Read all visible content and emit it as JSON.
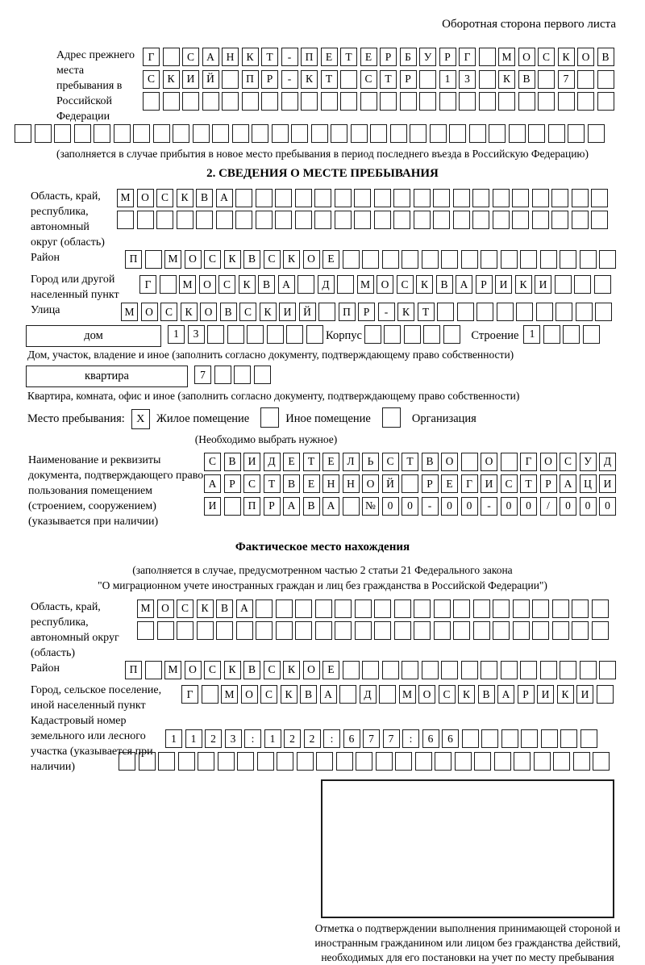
{
  "page": {
    "header_note": "Оборотная сторона первого листа"
  },
  "prev_address": {
    "label": "Адрес прежнего места пребывания в Российской Федерации",
    "rows": [
      "Г САНКТ-ПЕТЕРБУРГ МОСКОВ",
      "СКИЙ ПР-КТ СТР 13 КВ 7  ",
      "                        "
    ],
    "overflow_row": "                              ",
    "note": "(заполняется в случае прибытия в новое место пребывания в период последнего въезда в Российскую Федерацию)"
  },
  "section2": {
    "title": "2. СВЕДЕНИЯ О МЕСТЕ ПРЕБЫВАНИЯ",
    "region": {
      "label": "Область, край, республика, автономный округ (область)",
      "rows": [
        "МОСКВА                   ",
        "                         "
      ]
    },
    "district": {
      "label": "Район",
      "row": "П МОСКВСКОЕ              "
    },
    "city": {
      "label": "Город или другой населенный пункт",
      "row": "Г МОСКВА Д МОСКВАРИКИ   "
    },
    "street": {
      "label": "Улица",
      "row": "МОСКОВСКИЙ ПР-КТ         "
    },
    "house": {
      "field_label": "дом",
      "cells": "13      ",
      "korpus_label": "Корпус",
      "korpus_cells": "     ",
      "stroenie_label": "Строение",
      "stroenie_cells": "1   "
    },
    "house_note": "Дом, участок, владение и иное (заполнить согласно документу, подтверждающему право собственности)",
    "apartment": {
      "field_label": "квартира",
      "cells": "7   "
    },
    "apartment_note": "Квартира, комната, офис и иное (заполнить согласно документу, подтверждающему право собственности)",
    "stay_place": {
      "label": "Место пребывания:",
      "options": [
        {
          "label": "Жилое помещение",
          "checked": "X"
        },
        {
          "label": "Иное помещение",
          "checked": " "
        },
        {
          "label": "Организация",
          "checked": " "
        }
      ],
      "note": "(Необходимо выбрать нужное)"
    },
    "document": {
      "label": "Наименование и реквизиты документа, подтверждающего право пользования помещением (строением, сооружением) (указывается при наличии)",
      "rows": [
        "СВИДЕТЕЛЬСТВО О ГОСУД",
        "АРСТВЕННОЙ РЕГИСТРАЦИ",
        "И ПРАВА №00-00-00/000"
      ]
    }
  },
  "actual_location": {
    "title": "Фактическое место нахождения",
    "note_line1": "(заполняется в случае, предусмотренном частью 2 статьи 21 Федерального закона",
    "note_line2": "\"О миграционном учете иностранных граждан и лиц без гражданства в Российской Федерации\")",
    "region": {
      "label": "Область, край, республика, автономный округ (область)",
      "rows": [
        "МОСКВА                  ",
        "                        "
      ]
    },
    "district": {
      "label": "Район",
      "row": "П МОСКВСКОЕ              "
    },
    "city": {
      "label": "Город, сельское поселение, иной населенный пункт",
      "row": "Г МОСКВА Д МОСКВАРИКИ "
    },
    "cadastral": {
      "label": "Кадастровый номер земельного или лесного участка (указывается при наличии)",
      "rows": [
        "1123:122:677:66       ",
        "                         "
      ]
    },
    "stamp_caption": "Отметка о подтверждении выполнения принимающей стороной и иностранным гражданином или лицом без гражданства действий, необходимых для его постановки на учет по месту пребывания"
  }
}
